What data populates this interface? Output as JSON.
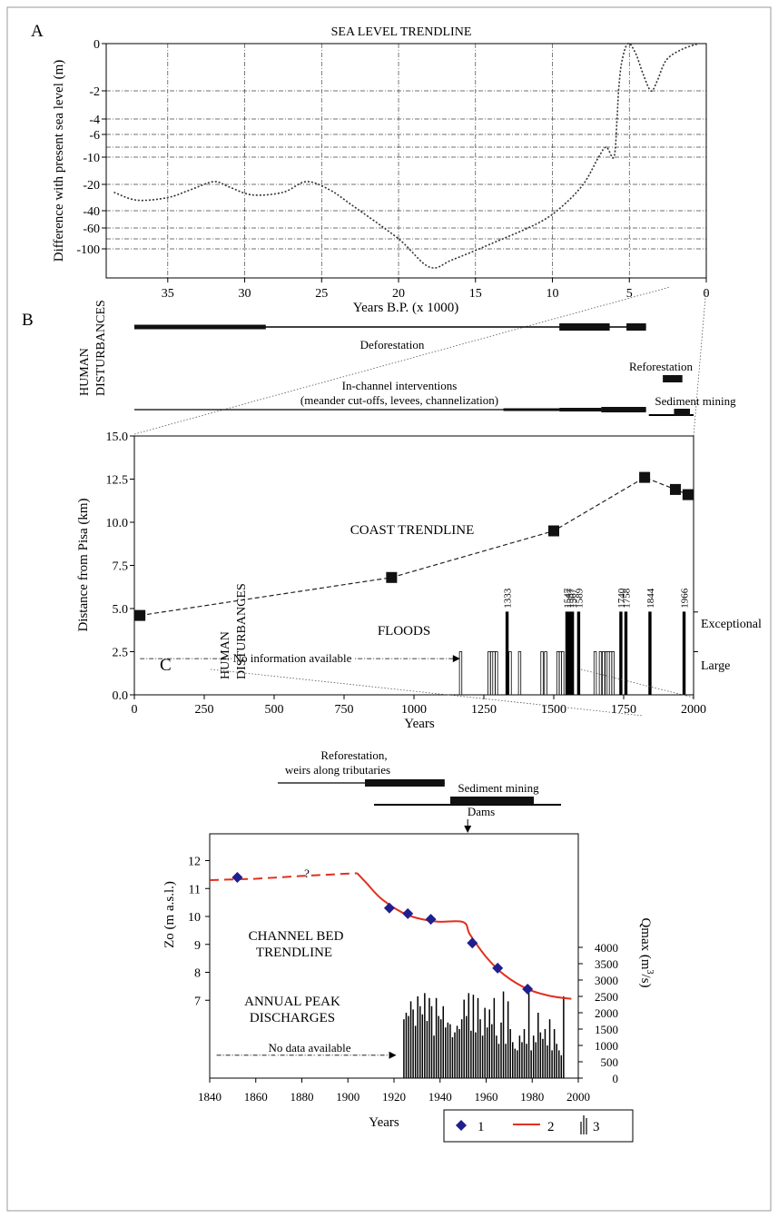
{
  "figure": {
    "panel_labels": [
      "A",
      "B",
      "C"
    ]
  },
  "chart_data": [
    {
      "panel": "A",
      "type": "line",
      "title": "SEA LEVEL TRENDLINE",
      "xlabel": "Years B.P. (x 1000)",
      "ylabel": "Difference with present sea level (m)",
      "x_reversed": true,
      "xlim": [
        39,
        0
      ],
      "xticks": [
        "35",
        "30",
        "25",
        "20",
        "15",
        "10",
        "5",
        "0"
      ],
      "yticks": [
        "0",
        "-2",
        "-4",
        "-6",
        "-10",
        "-20",
        "-40",
        "-60",
        "-100"
      ],
      "grid": true,
      "series": [
        {
          "line_style": "dotted",
          "color": "#333333",
          "points": [
            {
              "x": 38.5,
              "y": -26
            },
            {
              "x": 37,
              "y": -32
            },
            {
              "x": 35,
              "y": -30
            },
            {
              "x": 33.5,
              "y": -24
            },
            {
              "x": 32,
              "y": -19
            },
            {
              "x": 31,
              "y": -22
            },
            {
              "x": 29.5,
              "y": -28
            },
            {
              "x": 27.5,
              "y": -26
            },
            {
              "x": 26,
              "y": -19
            },
            {
              "x": 24.5,
              "y": -24
            },
            {
              "x": 23,
              "y": -36
            },
            {
              "x": 20,
              "y": -80
            },
            {
              "x": 18,
              "y": -125
            },
            {
              "x": 16.5,
              "y": -115
            },
            {
              "x": 14,
              "y": -90
            },
            {
              "x": 11,
              "y": -55
            },
            {
              "x": 9.5,
              "y": -38
            },
            {
              "x": 8,
              "y": -20
            },
            {
              "x": 7,
              "y": -10
            },
            {
              "x": 6.5,
              "y": -8
            },
            {
              "x": 6,
              "y": -10
            },
            {
              "x": 5.8,
              "y": -4
            },
            {
              "x": 5.7,
              "y": -2
            },
            {
              "x": 5.5,
              "y": -0.8
            },
            {
              "x": 5.1,
              "y": 0
            },
            {
              "x": 4.6,
              "y": -0.4
            },
            {
              "x": 4.1,
              "y": -1.3
            },
            {
              "x": 3.6,
              "y": -2
            },
            {
              "x": 3.2,
              "y": -1.6
            },
            {
              "x": 2.6,
              "y": -0.7
            },
            {
              "x": 1.6,
              "y": -0.25
            },
            {
              "x": 0.5,
              "y": 0
            }
          ]
        }
      ]
    },
    {
      "panel": "B",
      "type": "line",
      "title": "COAST TRENDLINE",
      "xlabel": "Years",
      "ylabel": "Distance from Pisa (km)",
      "xlim": [
        0,
        2000
      ],
      "ylim": [
        0,
        15
      ],
      "xticks": [
        "0",
        "250",
        "500",
        "750",
        "1000",
        "1250",
        "1500",
        "1750",
        "2000"
      ],
      "yticks": [
        "0.0",
        "2.5",
        "5.0",
        "7.5",
        "10.0",
        "12.5",
        "15.0"
      ],
      "coast_series": [
        {
          "x": 20,
          "y": 4.6
        },
        {
          "x": 920,
          "y": 6.8
        },
        {
          "x": 1500,
          "y": 9.5
        },
        {
          "x": 1825,
          "y": 12.6
        },
        {
          "x": 1935,
          "y": 11.9
        },
        {
          "x": 1980,
          "y": 11.6
        }
      ],
      "floods_label": "FLOODS",
      "flood_classes": {
        "right_labels": [
          "Exceptional",
          "Large"
        ],
        "exceptional": 4.8,
        "large": 2.5
      },
      "no_info_label": "No information available",
      "no_info_arrow": {
        "x_from": 20,
        "x_to": 1165,
        "y": 2.1
      },
      "floods": [
        {
          "year": 1167,
          "level": "large"
        },
        {
          "year": 1269,
          "level": "large"
        },
        {
          "year": 1278,
          "level": "large"
        },
        {
          "year": 1286,
          "level": "large"
        },
        {
          "year": 1295,
          "level": "large"
        },
        {
          "year": 1333,
          "level": "exceptional",
          "label": "1333"
        },
        {
          "year": 1344,
          "level": "large"
        },
        {
          "year": 1378,
          "level": "large"
        },
        {
          "year": 1458,
          "level": "large"
        },
        {
          "year": 1471,
          "level": "large"
        },
        {
          "year": 1515,
          "level": "large"
        },
        {
          "year": 1524,
          "level": "large"
        },
        {
          "year": 1532,
          "level": "large"
        },
        {
          "year": 1547,
          "level": "exceptional",
          "label": "1547"
        },
        {
          "year": 1557,
          "level": "exceptional",
          "label": "1557"
        },
        {
          "year": 1567,
          "level": "exceptional",
          "label": "1567"
        },
        {
          "year": 1589,
          "level": "exceptional",
          "label": "1589"
        },
        {
          "year": 1648,
          "level": "large"
        },
        {
          "year": 1667,
          "level": "large"
        },
        {
          "year": 1678,
          "level": "large"
        },
        {
          "year": 1688,
          "level": "large"
        },
        {
          "year": 1695,
          "level": "large"
        },
        {
          "year": 1703,
          "level": "large"
        },
        {
          "year": 1712,
          "level": "large"
        },
        {
          "year": 1740,
          "level": "exceptional",
          "label": "1740"
        },
        {
          "year": 1758,
          "level": "exceptional",
          "label": "1758"
        },
        {
          "year": 1844,
          "level": "exceptional",
          "label": "1844"
        },
        {
          "year": 1966,
          "level": "exceptional",
          "label": "1966"
        }
      ],
      "human_disturbances": {
        "label": "HUMAN DISTURBANCES",
        "bars": [
          {
            "label": "Deforestation",
            "thin": [
              0,
              1830
            ],
            "thick": [
              [
                0,
                470
              ],
              [
                1520,
                1700
              ],
              [
                1760,
                1830
              ]
            ]
          },
          {
            "label": "Reforestation",
            "thick": [
              [
                1890,
                1960
              ]
            ]
          },
          {
            "label": "In-channel interventions",
            "label2": "(meander cut-offs, levees, channelization)",
            "thin": [
              0,
              1830
            ],
            "thick": [
              [
                1320,
                1520
              ],
              [
                1520,
                1670
              ],
              [
                1670,
                1830
              ]
            ]
          },
          {
            "label": "Sediment mining",
            "thin": [
              1840,
              2000
            ],
            "thick": [
              [
                1930,
                2000
              ]
            ]
          }
        ]
      }
    },
    {
      "panel": "C",
      "type": "line",
      "title": "CHANNEL BED TRENDLINE",
      "xlabel": "Years",
      "ylabel": "Zo (m a.s.l.)",
      "ylabel_right": "Qmax (m³/s)",
      "xlim": [
        1840,
        2000
      ],
      "ylim": [
        7,
        12
      ],
      "y2lim": [
        0,
        4500
      ],
      "xticks": [
        "1840",
        "1860",
        "1880",
        "1900",
        "1920",
        "1940",
        "1960",
        "1980",
        "2000"
      ],
      "yticks": [
        "7",
        "8",
        "9",
        "10",
        "11",
        "12"
      ],
      "y2ticks": [
        "0",
        "500",
        "1000",
        "1500",
        "2000",
        "2500",
        "3000",
        "3500",
        "4000"
      ],
      "bed_points": [
        {
          "x": 1852,
          "y": 11.4
        },
        {
          "x": 1918,
          "y": 10.3
        },
        {
          "x": 1926,
          "y": 10.1
        },
        {
          "x": 1936,
          "y": 9.9
        },
        {
          "x": 1954,
          "y": 9.05
        },
        {
          "x": 1965,
          "y": 8.15
        },
        {
          "x": 1978,
          "y": 7.4
        }
      ],
      "trend_dashed": [
        {
          "x": 1840,
          "y": 11.3
        },
        {
          "x": 1860,
          "y": 11.35
        },
        {
          "x": 1880,
          "y": 11.45
        },
        {
          "x": 1904,
          "y": 11.55
        }
      ],
      "trend_solid": [
        {
          "x": 1904,
          "y": 11.55
        },
        {
          "x": 1908,
          "y": 11.2
        },
        {
          "x": 1915,
          "y": 10.6
        },
        {
          "x": 1926,
          "y": 10.05
        },
        {
          "x": 1938,
          "y": 9.82
        },
        {
          "x": 1950,
          "y": 9.8
        },
        {
          "x": 1953,
          "y": 9.35
        },
        {
          "x": 1960,
          "y": 8.55
        },
        {
          "x": 1968,
          "y": 7.9
        },
        {
          "x": 1978,
          "y": 7.4
        },
        {
          "x": 1988,
          "y": 7.15
        },
        {
          "x": 1997,
          "y": 7.05
        }
      ],
      "question_mark": "?",
      "peaks_label_1": "ANNUAL PEAK",
      "peaks_label_2": "DISCHARGES",
      "no_data_label": "No data available",
      "no_data_arrow": {
        "x_from": 1843,
        "x_to": 1921,
        "q": 700
      },
      "dams_label": "Dams",
      "dams_year": 1952,
      "annual_peaks": {
        "start_year": 1924,
        "values": [
          1800,
          2000,
          1900,
          2350,
          2100,
          1600,
          2500,
          2200,
          1950,
          2600,
          1750,
          2450,
          2200,
          1300,
          2450,
          1900,
          1800,
          2200,
          1550,
          1700,
          1650,
          1250,
          1400,
          1600,
          1500,
          1800,
          2400,
          1900,
          2600,
          1450,
          2550,
          1400,
          2450,
          1800,
          1300,
          2150,
          1550,
          2100,
          1650,
          2450,
          1300,
          1050,
          1700,
          2650,
          1050,
          2350,
          1500,
          1100,
          900,
          850,
          1300,
          1100,
          1500,
          1050,
          2600,
          850,
          1300,
          1100,
          2000,
          1400,
          1200,
          1500,
          1000,
          1800,
          850,
          1500,
          1050,
          850,
          700,
          2500
        ]
      },
      "legend": [
        {
          "marker": "diamond",
          "label": "1",
          "color": "#1f1f8f"
        },
        {
          "marker": "line",
          "label": "2",
          "color": "#e0301e"
        },
        {
          "marker": "bars",
          "label": "3",
          "color": "#000000"
        }
      ],
      "human_disturbances": {
        "label": "HUMAN DISTURBANCES",
        "bars": [
          {
            "label": "Reforestation,",
            "label2": "weirs along tributaries",
            "thin": [
              1880,
              1942
            ],
            "thick": [
              [
                1910,
                1942
              ]
            ]
          },
          {
            "label": "Sediment mining",
            "thin": [
              1910,
              1984
            ],
            "thick": [
              [
                1943,
                1975
              ]
            ]
          }
        ]
      }
    }
  ]
}
